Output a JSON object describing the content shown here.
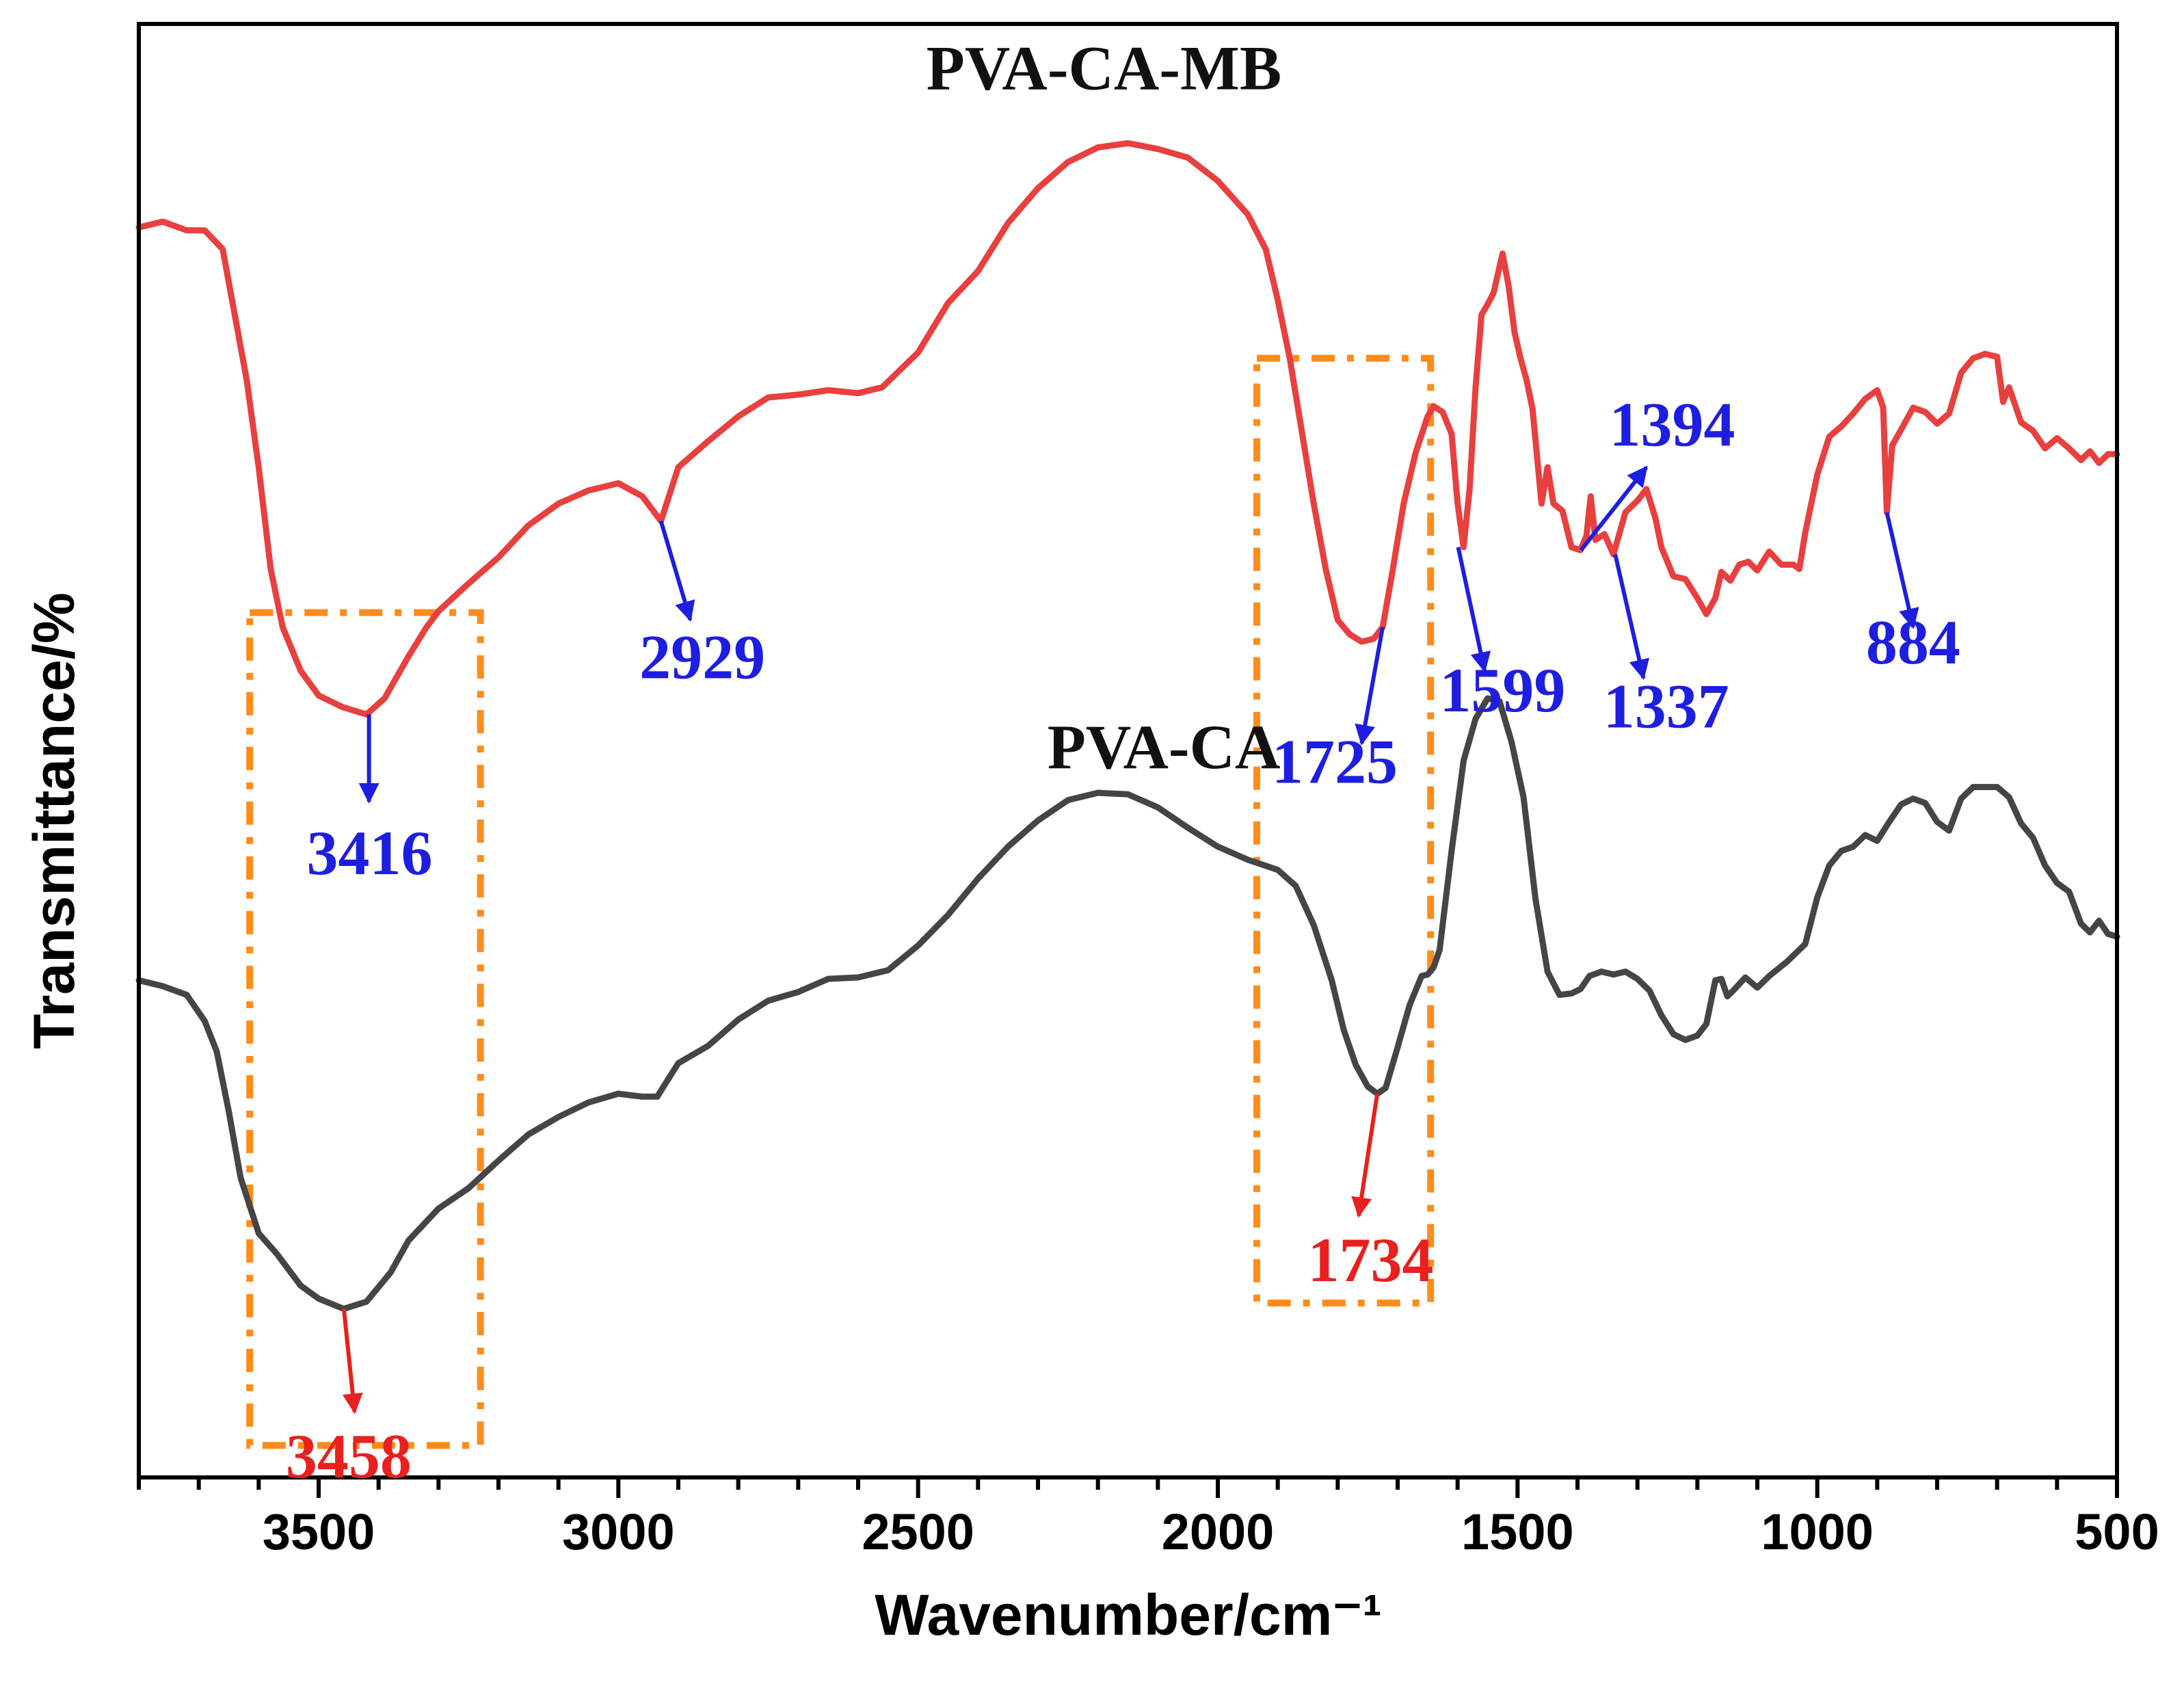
{
  "chart_data": {
    "type": "line",
    "title": "",
    "xlabel": "Wavenumber/cm⁻¹",
    "ylabel": "Transmittance/%",
    "xlim": [
      3800,
      500
    ],
    "x_reversed": true,
    "ylim": [
      0,
      100
    ],
    "y_ticks_shown": false,
    "x_ticks": [
      3500,
      3000,
      2500,
      2000,
      1500,
      1000,
      500
    ],
    "x_tick_labels": [
      "3500",
      "3000",
      "2500",
      "2000",
      "1500",
      "1000",
      "500"
    ],
    "colors": {
      "series_mb": "#e8403f",
      "series_ca": "#454545",
      "annot_blue": "#1e1ee0",
      "annot_red": "#e8201e",
      "highlight_box": "#ff8c1a"
    },
    "series": [
      {
        "name": "PVA-CA-MB",
        "color": "#e8403f",
        "points": [
          [
            3800,
            86
          ],
          [
            3760,
            86.4
          ],
          [
            3720,
            85.8
          ],
          [
            3690,
            85.8
          ],
          [
            3660,
            84.5
          ],
          [
            3640,
            80
          ],
          [
            3620,
            75.5
          ],
          [
            3600,
            69.5
          ],
          [
            3580,
            62.5
          ],
          [
            3560,
            58.5
          ],
          [
            3530,
            55.5
          ],
          [
            3500,
            53.8
          ],
          [
            3460,
            53.0
          ],
          [
            3420,
            52.5
          ],
          [
            3390,
            53.6
          ],
          [
            3350,
            56.5
          ],
          [
            3320,
            58.5
          ],
          [
            3300,
            59.6
          ],
          [
            3250,
            61.5
          ],
          [
            3200,
            63.3
          ],
          [
            3150,
            65.5
          ],
          [
            3100,
            67
          ],
          [
            3050,
            67.9
          ],
          [
            3000,
            68.4
          ],
          [
            2960,
            67.5
          ],
          [
            2929,
            65.8
          ],
          [
            2900,
            69.5
          ],
          [
            2850,
            71.3
          ],
          [
            2800,
            73
          ],
          [
            2750,
            74.3
          ],
          [
            2700,
            74.5
          ],
          [
            2650,
            74.8
          ],
          [
            2600,
            74.6
          ],
          [
            2560,
            75
          ],
          [
            2500,
            77.4
          ],
          [
            2450,
            80.8
          ],
          [
            2400,
            83
          ],
          [
            2350,
            86.3
          ],
          [
            2300,
            88.7
          ],
          [
            2250,
            90.5
          ],
          [
            2200,
            91.5
          ],
          [
            2150,
            91.8
          ],
          [
            2100,
            91.4
          ],
          [
            2050,
            90.8
          ],
          [
            2000,
            89.2
          ],
          [
            1950,
            86.9
          ],
          [
            1920,
            84.5
          ],
          [
            1900,
            81
          ],
          [
            1880,
            77
          ],
          [
            1860,
            72
          ],
          [
            1840,
            67
          ],
          [
            1820,
            62.5
          ],
          [
            1800,
            59
          ],
          [
            1780,
            58
          ],
          [
            1760,
            57.5
          ],
          [
            1740,
            57.7
          ],
          [
            1725,
            58.5
          ],
          [
            1710,
            62
          ],
          [
            1690,
            67
          ],
          [
            1670,
            70.5
          ],
          [
            1650,
            73
          ],
          [
            1640,
            73.7
          ],
          [
            1625,
            73.3
          ],
          [
            1610,
            71.8
          ],
          [
            1600,
            67
          ],
          [
            1590,
            64
          ],
          [
            1580,
            68
          ],
          [
            1570,
            75
          ],
          [
            1560,
            80
          ],
          [
            1550,
            80.7
          ],
          [
            1540,
            81.5
          ],
          [
            1525,
            84.2
          ],
          [
            1515,
            82
          ],
          [
            1505,
            78.8
          ],
          [
            1495,
            77
          ],
          [
            1485,
            75.5
          ],
          [
            1475,
            73.5
          ],
          [
            1460,
            67
          ],
          [
            1450,
            69.5
          ],
          [
            1440,
            67
          ],
          [
            1425,
            66.5
          ],
          [
            1410,
            64
          ],
          [
            1395,
            63.8
          ],
          [
            1385,
            64.8
          ],
          [
            1378,
            67.5
          ],
          [
            1370,
            64.5
          ],
          [
            1355,
            64.9
          ],
          [
            1340,
            63.5
          ],
          [
            1320,
            66.4
          ],
          [
            1300,
            67.2
          ],
          [
            1285,
            68
          ],
          [
            1270,
            66
          ],
          [
            1260,
            64
          ],
          [
            1240,
            62
          ],
          [
            1220,
            61.8
          ],
          [
            1200,
            60.5
          ],
          [
            1185,
            59.4
          ],
          [
            1170,
            60.5
          ],
          [
            1160,
            62.3
          ],
          [
            1145,
            61.7
          ],
          [
            1130,
            62.8
          ],
          [
            1115,
            63
          ],
          [
            1100,
            62.4
          ],
          [
            1080,
            63.7
          ],
          [
            1060,
            62.8
          ],
          [
            1040,
            62.8
          ],
          [
            1030,
            62.5
          ],
          [
            1020,
            65
          ],
          [
            1000,
            69
          ],
          [
            980,
            71.6
          ],
          [
            960,
            72.3
          ],
          [
            940,
            73.2
          ],
          [
            920,
            74.2
          ],
          [
            900,
            74.8
          ],
          [
            890,
            73.6
          ],
          [
            884,
            66.4
          ],
          [
            875,
            71
          ],
          [
            860,
            72.1
          ],
          [
            840,
            73.6
          ],
          [
            820,
            73.3
          ],
          [
            800,
            72.5
          ],
          [
            780,
            73.2
          ],
          [
            760,
            76
          ],
          [
            740,
            77
          ],
          [
            720,
            77.3
          ],
          [
            700,
            77.1
          ],
          [
            690,
            74
          ],
          [
            680,
            75
          ],
          [
            660,
            72.6
          ],
          [
            640,
            72
          ],
          [
            620,
            70.8
          ],
          [
            600,
            71.5
          ],
          [
            580,
            70.8
          ],
          [
            560,
            70
          ],
          [
            545,
            70.6
          ],
          [
            530,
            69.8
          ],
          [
            515,
            70.4
          ],
          [
            500,
            70.4
          ]
        ]
      },
      {
        "name": "PVA-CA",
        "color": "#454545",
        "points": [
          [
            3800,
            34.2
          ],
          [
            3760,
            33.8
          ],
          [
            3720,
            33.2
          ],
          [
            3690,
            31.4
          ],
          [
            3670,
            29.3
          ],
          [
            3650,
            25.2
          ],
          [
            3630,
            20.6
          ],
          [
            3600,
            16.8
          ],
          [
            3570,
            15.4
          ],
          [
            3530,
            13.2
          ],
          [
            3500,
            12.3
          ],
          [
            3470,
            11.8
          ],
          [
            3458,
            11.6
          ],
          [
            3420,
            12.1
          ],
          [
            3380,
            14.1
          ],
          [
            3350,
            16.3
          ],
          [
            3300,
            18.5
          ],
          [
            3250,
            19.9
          ],
          [
            3200,
            21.8
          ],
          [
            3150,
            23.6
          ],
          [
            3100,
            24.8
          ],
          [
            3050,
            25.8
          ],
          [
            3000,
            26.4
          ],
          [
            2960,
            26.2
          ],
          [
            2935,
            26.2
          ],
          [
            2920,
            27.2
          ],
          [
            2900,
            28.5
          ],
          [
            2850,
            29.7
          ],
          [
            2800,
            31.5
          ],
          [
            2750,
            32.8
          ],
          [
            2700,
            33.4
          ],
          [
            2650,
            34.3
          ],
          [
            2600,
            34.4
          ],
          [
            2550,
            34.9
          ],
          [
            2500,
            36.6
          ],
          [
            2450,
            38.7
          ],
          [
            2400,
            41.2
          ],
          [
            2350,
            43.4
          ],
          [
            2300,
            45.2
          ],
          [
            2250,
            46.6
          ],
          [
            2200,
            47.1
          ],
          [
            2150,
            47
          ],
          [
            2100,
            46.1
          ],
          [
            2050,
            44.7
          ],
          [
            2000,
            43.4
          ],
          [
            1950,
            42.5
          ],
          [
            1900,
            41.8
          ],
          [
            1870,
            40.7
          ],
          [
            1840,
            38
          ],
          [
            1810,
            34.2
          ],
          [
            1790,
            30.8
          ],
          [
            1770,
            28.4
          ],
          [
            1750,
            26.9
          ],
          [
            1734,
            26.4
          ],
          [
            1720,
            26.8
          ],
          [
            1700,
            29.6
          ],
          [
            1680,
            32.5
          ],
          [
            1660,
            34.5
          ],
          [
            1650,
            34.6
          ],
          [
            1640,
            35.1
          ],
          [
            1630,
            36.3
          ],
          [
            1610,
            43.1
          ],
          [
            1590,
            49.3
          ],
          [
            1570,
            52.2
          ],
          [
            1550,
            53.6
          ],
          [
            1530,
            53.4
          ],
          [
            1510,
            50.6
          ],
          [
            1490,
            46.8
          ],
          [
            1470,
            39.8
          ],
          [
            1450,
            34.8
          ],
          [
            1430,
            33.2
          ],
          [
            1410,
            33.3
          ],
          [
            1395,
            33.6
          ],
          [
            1380,
            34.5
          ],
          [
            1360,
            34.8
          ],
          [
            1340,
            34.6
          ],
          [
            1320,
            34.8
          ],
          [
            1300,
            34.3
          ],
          [
            1280,
            33.5
          ],
          [
            1260,
            31.8
          ],
          [
            1240,
            30.5
          ],
          [
            1220,
            30.1
          ],
          [
            1200,
            30.4
          ],
          [
            1185,
            31.2
          ],
          [
            1170,
            34.2
          ],
          [
            1160,
            34.3
          ],
          [
            1150,
            33.1
          ],
          [
            1140,
            33.5
          ],
          [
            1120,
            34.4
          ],
          [
            1100,
            33.7
          ],
          [
            1080,
            34.5
          ],
          [
            1050,
            35.5
          ],
          [
            1020,
            36.7
          ],
          [
            1000,
            39.9
          ],
          [
            980,
            42.1
          ],
          [
            960,
            43.1
          ],
          [
            940,
            43.4
          ],
          [
            920,
            44.2
          ],
          [
            900,
            43.8
          ],
          [
            880,
            45.1
          ],
          [
            860,
            46.3
          ],
          [
            840,
            46.7
          ],
          [
            820,
            46.4
          ],
          [
            800,
            45.1
          ],
          [
            780,
            44.5
          ],
          [
            760,
            46.7
          ],
          [
            740,
            47.5
          ],
          [
            720,
            47.5
          ],
          [
            700,
            47.5
          ],
          [
            680,
            46.8
          ],
          [
            660,
            45
          ],
          [
            640,
            44
          ],
          [
            620,
            42.1
          ],
          [
            600,
            40.9
          ],
          [
            580,
            40.3
          ],
          [
            560,
            38.1
          ],
          [
            545,
            37.5
          ],
          [
            530,
            38.3
          ],
          [
            515,
            37.4
          ],
          [
            500,
            37.2
          ]
        ]
      }
    ],
    "series_labels": [
      {
        "text": "PVA-CA-MB",
        "x": 2190,
        "y": 95.5
      },
      {
        "text": "PVA-CA",
        "x": 2090,
        "y": 48.8
      }
    ],
    "annotations": [
      {
        "text": "3416",
        "tip": [
          3416,
          52.5
        ],
        "tail": [
          3416,
          46.5
        ],
        "label_pos": [
          3415,
          41.5
        ],
        "color": "annot_blue"
      },
      {
        "text": "2929",
        "tip": [
          2929,
          65.8
        ],
        "tail": [
          2880,
          59
        ],
        "label_pos": [
          2860,
          55.0
        ],
        "color": "annot_blue"
      },
      {
        "text": "1725",
        "tip": [
          1725,
          58.5
        ],
        "tail": [
          1760,
          50.5
        ],
        "label_pos": [
          1805,
          47.8
        ],
        "color": "annot_blue"
      },
      {
        "text": "1599",
        "tip": [
          1599,
          64.0
        ],
        "tail": [
          1555,
          55.5
        ],
        "label_pos": [
          1525,
          52.7
        ],
        "color": "annot_blue"
      },
      {
        "text": "1394",
        "tip": [
          1394,
          63.8
        ],
        "tail": [
          1285,
          69.5
        ],
        "label_pos": [
          1242,
          71.0
        ],
        "color": "annot_blue"
      },
      {
        "text": "1337",
        "tip": [
          1337,
          63.5
        ],
        "tail": [
          1290,
          55.0
        ],
        "label_pos": [
          1252,
          51.6
        ],
        "color": "annot_blue"
      },
      {
        "text": "884",
        "tip": [
          884,
          66.4
        ],
        "tail": [
          840,
          58.5
        ],
        "label_pos": [
          840,
          56.0
        ],
        "color": "annot_blue"
      },
      {
        "text": "3458",
        "tip": [
          3458,
          11.6
        ],
        "tail": [
          3440,
          4.5
        ],
        "label_pos": [
          3450,
          0.0
        ],
        "color": "annot_red"
      },
      {
        "text": "1734",
        "tip": [
          1734,
          26.4
        ],
        "tail": [
          1765,
          18.0
        ],
        "label_pos": [
          1745,
          13.5
        ],
        "color": "annot_red"
      }
    ],
    "highlight_boxes": [
      {
        "x_range": [
          3230,
          3615
        ],
        "y_range": [
          2.2,
          59.5
        ]
      },
      {
        "x_range": [
          1645,
          1935
        ],
        "y_range": [
          12.0,
          77.0
        ]
      }
    ]
  }
}
